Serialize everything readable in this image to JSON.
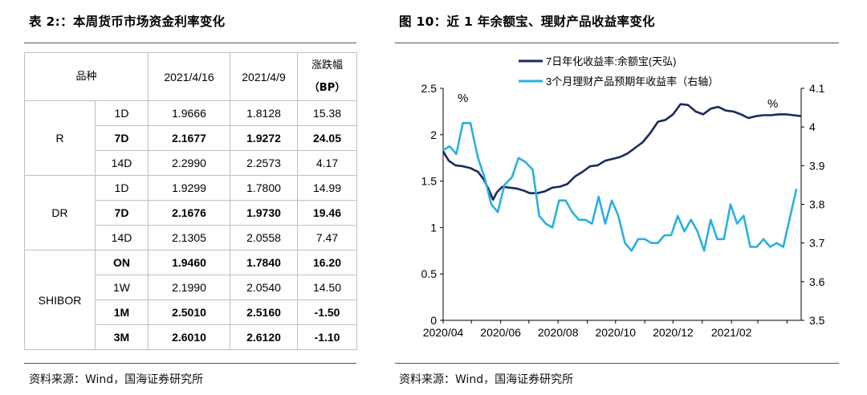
{
  "left": {
    "title": "表 2:：本周货币市场资金利率变化",
    "source": "资料来源：Wind，国海证券研究所",
    "table": {
      "headers": [
        "品种",
        "2021/4/16",
        "2021/4/9",
        "涨跌幅",
        "（BP）"
      ],
      "groups": [
        {
          "name": "R",
          "rows": [
            {
              "term": "1D",
              "v1": "1.9666",
              "v2": "1.8128",
              "chg": "15.38",
              "bold": false
            },
            {
              "term": "7D",
              "v1": "2.1677",
              "v2": "1.9272",
              "chg": "24.05",
              "bold": true
            },
            {
              "term": "14D",
              "v1": "2.2990",
              "v2": "2.2573",
              "chg": "4.17",
              "bold": false
            }
          ]
        },
        {
          "name": "DR",
          "rows": [
            {
              "term": "1D",
              "v1": "1.9299",
              "v2": "1.7800",
              "chg": "14.99",
              "bold": false
            },
            {
              "term": "7D",
              "v1": "2.1676",
              "v2": "1.9730",
              "chg": "19.46",
              "bold": true
            },
            {
              "term": "14D",
              "v1": "2.1305",
              "v2": "2.0558",
              "chg": "7.47",
              "bold": false
            }
          ]
        },
        {
          "name": "SHIBOR",
          "rows": [
            {
              "term": "ON",
              "v1": "1.9460",
              "v2": "1.7840",
              "chg": "16.20",
              "bold": true
            },
            {
              "term": "1W",
              "v1": "2.1990",
              "v2": "2.0540",
              "chg": "14.50",
              "bold": false
            },
            {
              "term": "1M",
              "v1": "2.5010",
              "v2": "2.5160",
              "chg": "-1.50",
              "bold": true
            },
            {
              "term": "3M",
              "v1": "2.6010",
              "v2": "2.6120",
              "chg": "-1.10",
              "bold": true
            }
          ]
        }
      ]
    }
  },
  "right": {
    "title": "图 10：近 1 年余额宝、理财产品收益率变化",
    "source": "资料来源：Wind，国海证券研究所"
  },
  "chart_data": {
    "type": "line",
    "colors": {
      "series1": "#1b2a5e",
      "series2": "#2ab0e0"
    },
    "x_ticks": [
      "2020/04",
      "2020/06",
      "2020/08",
      "2020/10",
      "2020/12",
      "2021/02"
    ],
    "x_range": [
      "2020-04-01",
      "2021-04-16"
    ],
    "left_axis": {
      "unit": "%",
      "ylim": [
        0,
        2.5
      ],
      "ticks": [
        "0",
        "0.5",
        "1",
        "1.5",
        "2",
        "2.5"
      ]
    },
    "right_axis": {
      "unit": "%",
      "ylim": [
        3.5,
        4.1
      ],
      "ticks": [
        "3.5",
        "3.6",
        "3.7",
        "3.8",
        "3.9",
        "4",
        "4.1"
      ]
    },
    "legend_position": "top",
    "series": [
      {
        "name": "7日年化收益率:余额宝(天弘)",
        "axis": "left",
        "color": "#1b2a5e",
        "points": [
          [
            "2020-04-01",
            1.82
          ],
          [
            "2020-04-07",
            1.72
          ],
          [
            "2020-04-14",
            1.67
          ],
          [
            "2020-04-22",
            1.66
          ],
          [
            "2020-04-30",
            1.64
          ],
          [
            "2020-05-08",
            1.6
          ],
          [
            "2020-05-14",
            1.52
          ],
          [
            "2020-05-19",
            1.42
          ],
          [
            "2020-05-24",
            1.3
          ],
          [
            "2020-05-28",
            1.38
          ],
          [
            "2020-06-03",
            1.44
          ],
          [
            "2020-06-10",
            1.43
          ],
          [
            "2020-06-18",
            1.42
          ],
          [
            "2020-06-25",
            1.4
          ],
          [
            "2020-07-02",
            1.37
          ],
          [
            "2020-07-10",
            1.37
          ],
          [
            "2020-07-18",
            1.39
          ],
          [
            "2020-07-26",
            1.43
          ],
          [
            "2020-08-03",
            1.44
          ],
          [
            "2020-08-11",
            1.47
          ],
          [
            "2020-08-19",
            1.55
          ],
          [
            "2020-08-27",
            1.6
          ],
          [
            "2020-09-04",
            1.66
          ],
          [
            "2020-09-12",
            1.67
          ],
          [
            "2020-09-20",
            1.72
          ],
          [
            "2020-09-28",
            1.74
          ],
          [
            "2020-10-06",
            1.76
          ],
          [
            "2020-10-14",
            1.8
          ],
          [
            "2020-10-22",
            1.86
          ],
          [
            "2020-10-30",
            1.92
          ],
          [
            "2020-11-07",
            2.02
          ],
          [
            "2020-11-15",
            2.14
          ],
          [
            "2020-11-23",
            2.16
          ],
          [
            "2020-12-01",
            2.22
          ],
          [
            "2020-12-09",
            2.33
          ],
          [
            "2020-12-17",
            2.32
          ],
          [
            "2020-12-25",
            2.25
          ],
          [
            "2021-01-02",
            2.22
          ],
          [
            "2021-01-10",
            2.28
          ],
          [
            "2021-01-18",
            2.3
          ],
          [
            "2021-01-26",
            2.26
          ],
          [
            "2021-02-03",
            2.25
          ],
          [
            "2021-02-11",
            2.22
          ],
          [
            "2021-02-19",
            2.18
          ],
          [
            "2021-02-27",
            2.2
          ],
          [
            "2021-03-07",
            2.21
          ],
          [
            "2021-03-15",
            2.21
          ],
          [
            "2021-03-23",
            2.22
          ],
          [
            "2021-03-31",
            2.22
          ],
          [
            "2021-04-08",
            2.21
          ],
          [
            "2021-04-16",
            2.2
          ]
        ]
      },
      {
        "name": "3个月理财产品预期年收益率（右轴）",
        "axis": "right",
        "color": "#2ab0e0",
        "points": [
          [
            "2020-04-01",
            3.94
          ],
          [
            "2020-04-08",
            3.95
          ],
          [
            "2020-04-15",
            3.93
          ],
          [
            "2020-04-22",
            4.01
          ],
          [
            "2020-04-30",
            4.01
          ],
          [
            "2020-05-08",
            3.92
          ],
          [
            "2020-05-15",
            3.87
          ],
          [
            "2020-05-22",
            3.8
          ],
          [
            "2020-05-29",
            3.78
          ],
          [
            "2020-06-05",
            3.85
          ],
          [
            "2020-06-13",
            3.87
          ],
          [
            "2020-06-20",
            3.92
          ],
          [
            "2020-06-27",
            3.91
          ],
          [
            "2020-07-05",
            3.89
          ],
          [
            "2020-07-12",
            3.77
          ],
          [
            "2020-07-19",
            3.75
          ],
          [
            "2020-07-26",
            3.74
          ],
          [
            "2020-08-02",
            3.81
          ],
          [
            "2020-08-09",
            3.81
          ],
          [
            "2020-08-16",
            3.78
          ],
          [
            "2020-08-23",
            3.76
          ],
          [
            "2020-08-30",
            3.76
          ],
          [
            "2020-09-06",
            3.75
          ],
          [
            "2020-09-13",
            3.82
          ],
          [
            "2020-09-20",
            3.75
          ],
          [
            "2020-09-27",
            3.81
          ],
          [
            "2020-10-04",
            3.77
          ],
          [
            "2020-10-11",
            3.7
          ],
          [
            "2020-10-18",
            3.68
          ],
          [
            "2020-10-25",
            3.71
          ],
          [
            "2020-11-01",
            3.71
          ],
          [
            "2020-11-08",
            3.7
          ],
          [
            "2020-11-15",
            3.7
          ],
          [
            "2020-11-22",
            3.72
          ],
          [
            "2020-11-29",
            3.72
          ],
          [
            "2020-12-06",
            3.77
          ],
          [
            "2020-12-13",
            3.73
          ],
          [
            "2020-12-20",
            3.76
          ],
          [
            "2020-12-27",
            3.73
          ],
          [
            "2021-01-03",
            3.68
          ],
          [
            "2021-01-10",
            3.76
          ],
          [
            "2021-01-17",
            3.71
          ],
          [
            "2021-01-24",
            3.71
          ],
          [
            "2021-01-31",
            3.8
          ],
          [
            "2021-02-07",
            3.75
          ],
          [
            "2021-02-14",
            3.77
          ],
          [
            "2021-02-21",
            3.69
          ],
          [
            "2021-02-28",
            3.69
          ],
          [
            "2021-03-07",
            3.71
          ],
          [
            "2021-03-14",
            3.69
          ],
          [
            "2021-03-21",
            3.7
          ],
          [
            "2021-03-28",
            3.69
          ],
          [
            "2021-04-11",
            3.84
          ]
        ]
      }
    ]
  }
}
